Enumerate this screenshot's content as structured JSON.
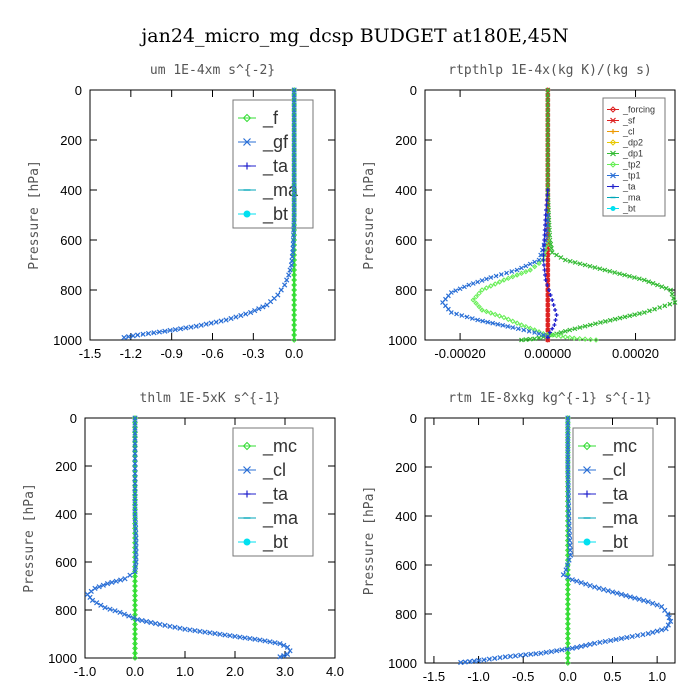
{
  "title": "jan24_micro_mg_dcsp  BUDGET at180E,45N",
  "chart_data": [
    {
      "type": "line",
      "title": "um  1E-4xm s^{-2}",
      "ylabel": "Pressure [hPa]",
      "xlabel": "",
      "xlim": [
        -1.5,
        0.3
      ],
      "ylim": [
        1000,
        0
      ],
      "xticks": [
        -1.5,
        -1.2,
        -0.9,
        -0.6,
        -0.3,
        0.0
      ],
      "xtick_labels": [
        "-1.5",
        "-1.2",
        "-0.9",
        "-0.6",
        "-0.3",
        "0.0"
      ],
      "yticks": [
        0,
        200,
        400,
        600,
        800,
        1000
      ],
      "legend_position": "top-right",
      "legend_style": "large",
      "series": [
        {
          "name": "_f",
          "color": "#33dd33",
          "x": [
            0,
            0,
            0,
            0,
            0,
            0,
            0,
            0,
            0,
            0,
            0
          ],
          "y": [
            0,
            100,
            200,
            300,
            400,
            500,
            600,
            700,
            800,
            900,
            1000
          ]
        },
        {
          "name": "_gf",
          "color": "#2a6fd6",
          "x": [
            0,
            0,
            0,
            -0.005,
            -0.01,
            -0.02,
            -0.04,
            -0.07,
            -0.12,
            -0.2,
            -0.32,
            -0.5,
            -0.72,
            -0.95,
            -1.15,
            -1.25
          ],
          "y": [
            0,
            200,
            500,
            600,
            650,
            700,
            740,
            780,
            820,
            860,
            890,
            920,
            945,
            965,
            980,
            990
          ]
        },
        {
          "name": "_ta",
          "color": "#2020cc",
          "x": [],
          "y": []
        },
        {
          "name": "_ma",
          "color": "#00a6b8",
          "x": [],
          "y": []
        },
        {
          "name": "_bt",
          "color": "#00e0f0",
          "x": [],
          "y": []
        }
      ]
    },
    {
      "type": "line",
      "title": "rtpthlp  1E-4x(kg K)/(kg s)",
      "ylabel": "Pressure [hPa]",
      "xlabel": "",
      "xlim": [
        -0.00028,
        0.00029
      ],
      "ylim": [
        1000,
        0
      ],
      "xticks": [
        -0.0002,
        0.0,
        0.0002
      ],
      "xtick_labels": [
        "-0.00020",
        "0.00000",
        "0.00020"
      ],
      "yticks": [
        0,
        200,
        400,
        600,
        800,
        1000
      ],
      "legend_position": "top-right",
      "legend_style": "small",
      "series": [
        {
          "name": "_forcing",
          "color": "#dd2020",
          "x": [
            0,
            0,
            0,
            0,
            0,
            0,
            0,
            0,
            0,
            0,
            0
          ],
          "y": [
            0,
            100,
            200,
            300,
            400,
            500,
            600,
            700,
            800,
            900,
            1000
          ]
        },
        {
          "name": "_sf",
          "color": "#dd2020",
          "x": [
            0,
            0,
            0,
            0,
            0,
            0,
            0,
            0,
            0,
            0,
            0
          ],
          "y": [
            0,
            100,
            200,
            300,
            400,
            500,
            600,
            700,
            800,
            900,
            1000
          ]
        },
        {
          "name": "_cl",
          "color": "#ee9900",
          "x": [],
          "y": []
        },
        {
          "name": "_dp2",
          "color": "#e8c800",
          "x": [],
          "y": []
        },
        {
          "name": "_dp1",
          "color": "#33bb33",
          "x": [
            0,
            0,
            0,
            2e-06,
            5e-06,
            1e-05,
            4e-05,
            0.00013,
            0.00022,
            0.00028,
            0.00029,
            0.00022,
            0.00012,
            5e-05,
            1e-05,
            -3e-05,
            -6e-05
          ],
          "y": [
            0,
            200,
            400,
            500,
            600,
            650,
            680,
            720,
            760,
            800,
            850,
            890,
            930,
            960,
            980,
            995,
            1000
          ]
        },
        {
          "name": "_tp2",
          "color": "#66ee55",
          "x": [
            0,
            -1e-05,
            -4e-05,
            -0.0001,
            -0.00015,
            -0.00017,
            -0.00015,
            -0.0001,
            -6e-05,
            -3e-05,
            -1e-05,
            3e-05,
            6e-05,
            0.00011
          ],
          "y": [
            600,
            680,
            720,
            760,
            800,
            840,
            880,
            910,
            940,
            960,
            975,
            985,
            993,
            1000
          ]
        },
        {
          "name": "_tp1",
          "color": "#2a6fd6",
          "x": [
            0,
            -5e-06,
            -2e-05,
            -7e-05,
            -0.00013,
            -0.00018,
            -0.00022,
            -0.00024,
            -0.00022,
            -0.00016,
            -8e-05,
            -3e-05,
            0.0
          ],
          "y": [
            500,
            600,
            680,
            720,
            750,
            780,
            810,
            850,
            890,
            920,
            950,
            970,
            985
          ]
        },
        {
          "name": "_ta",
          "color": "#2020cc",
          "x": [
            0,
            -5e-06,
            -8e-06,
            -1e-05,
            -5e-06,
            1e-05,
            2e-05,
            1.5e-05,
            5e-06,
            0.0
          ],
          "y": [
            400,
            500,
            600,
            680,
            760,
            840,
            900,
            940,
            970,
            990
          ]
        },
        {
          "name": "_ma",
          "color": "#00a6b8",
          "x": [],
          "y": []
        },
        {
          "name": "_bt",
          "color": "#00e0f0",
          "x": [],
          "y": []
        }
      ]
    },
    {
      "type": "line",
      "title": "thlm  1E-5xK s^{-1}",
      "ylabel": "Pressure [hPa]",
      "xlabel": "",
      "xlim": [
        -1.0,
        4.0
      ],
      "ylim": [
        1000,
        0
      ],
      "xticks": [
        -1.0,
        0.0,
        1.0,
        2.0,
        3.0,
        4.0
      ],
      "xtick_labels": [
        "-1.0",
        "0.0",
        "1.0",
        "2.0",
        "3.0",
        "4.0"
      ],
      "yticks": [
        0,
        200,
        400,
        600,
        800,
        1000
      ],
      "legend_position": "top-right",
      "legend_style": "large",
      "series": [
        {
          "name": "_mc",
          "color": "#33dd33",
          "x": [
            0,
            0,
            0,
            0,
            0,
            0,
            0,
            0,
            0,
            0,
            0
          ],
          "y": [
            0,
            100,
            200,
            300,
            400,
            500,
            600,
            700,
            800,
            900,
            1000
          ]
        },
        {
          "name": "_cl",
          "color": "#2a6fd6",
          "x": [
            0,
            0,
            0.02,
            0.02,
            0,
            -0.2,
            -0.55,
            -0.8,
            -0.95,
            -0.85,
            -0.6,
            -0.3,
            0.05,
            0.5,
            1.0,
            1.5,
            2.0,
            2.5,
            2.9,
            3.05,
            3.1,
            3.05,
            2.9
          ],
          "y": [
            0,
            400,
            500,
            600,
            640,
            670,
            690,
            710,
            735,
            760,
            790,
            810,
            840,
            860,
            880,
            895,
            910,
            925,
            940,
            955,
            970,
            985,
            995
          ]
        },
        {
          "name": "_ta",
          "color": "#2020cc",
          "x": [],
          "y": []
        },
        {
          "name": "_ma",
          "color": "#00a6b8",
          "x": [],
          "y": []
        },
        {
          "name": "_bt",
          "color": "#00e0f0",
          "x": [],
          "y": []
        }
      ]
    },
    {
      "type": "line",
      "title": "rtm  1E-8xkg kg^{-1} s^{-1}",
      "ylabel": "Pressure [hPa]",
      "xlabel": "",
      "xlim": [
        -1.6,
        1.2
      ],
      "ylim": [
        1000,
        0
      ],
      "xticks": [
        -1.5,
        -1.0,
        -0.5,
        0.0,
        0.5,
        1.0
      ],
      "xtick_labels": [
        "-1.5",
        "-1.0",
        "-0.5",
        "0.0",
        "0.5",
        "1.0"
      ],
      "yticks": [
        0,
        200,
        400,
        600,
        800,
        1000
      ],
      "legend_position": "top-right",
      "legend_style": "large",
      "series": [
        {
          "name": "_mc",
          "color": "#33dd33",
          "x": [
            0,
            0,
            0,
            0,
            0,
            0,
            0,
            0,
            0,
            0,
            0
          ],
          "y": [
            0,
            100,
            200,
            300,
            400,
            500,
            600,
            700,
            800,
            900,
            1000
          ]
        },
        {
          "name": "_cl",
          "color": "#2a6fd6",
          "x": [
            0,
            0,
            0.01,
            0.02,
            0.03,
            -0.02,
            -0.05,
            0.05,
            0.3,
            0.6,
            0.9,
            1.05,
            1.12,
            1.15,
            1.1,
            0.9,
            0.6,
            0.3,
            0.05,
            -0.3,
            -0.7,
            -1.0,
            -1.2
          ],
          "y": [
            0,
            200,
            400,
            500,
            560,
            620,
            640,
            660,
            690,
            720,
            750,
            770,
            800,
            830,
            860,
            880,
            900,
            920,
            940,
            960,
            975,
            990,
            998
          ]
        },
        {
          "name": "_ta",
          "color": "#2020cc",
          "x": [],
          "y": []
        },
        {
          "name": "_ma",
          "color": "#00a6b8",
          "x": [],
          "y": []
        },
        {
          "name": "_bt",
          "color": "#00e0f0",
          "x": [],
          "y": []
        }
      ]
    }
  ]
}
